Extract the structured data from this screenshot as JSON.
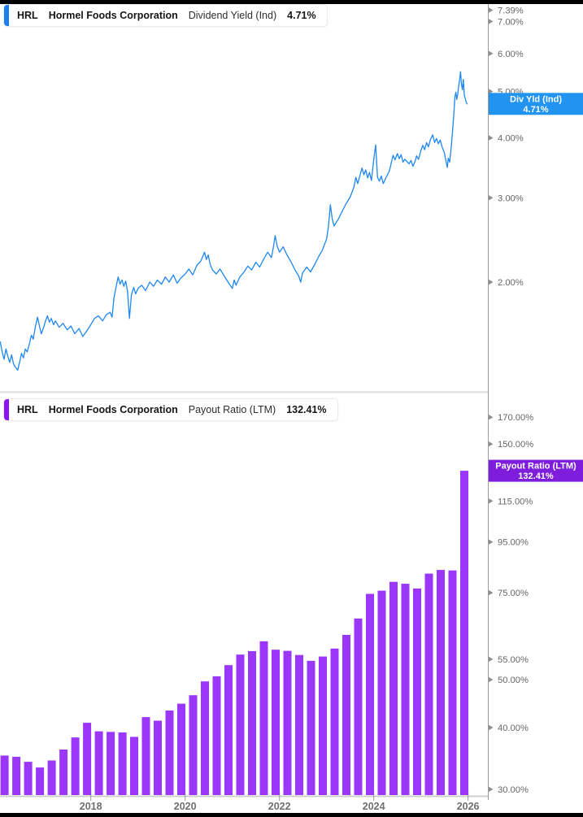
{
  "page": {
    "background": "#ffffff",
    "top_bar_color": "#000000",
    "bottom_bar_color": "#000000",
    "axis_color": "#9a9a9a",
    "tick_label_color": "#666666",
    "year_label_color": "#6f6f6f"
  },
  "chart_data": [
    {
      "type": "line",
      "title": "HRL Hormel Foods Corporation Dividend Yield (Ind) 4.71%",
      "header": {
        "ticker": "HRL",
        "company": "Hormel Foods Corporation",
        "metric": "Dividend Yield (Ind)",
        "value": "4.71%",
        "accent_color": "#1B7FF2"
      },
      "badge": {
        "line1": "Div Yld (Ind)",
        "line2": "4.71%",
        "color": "#2193F0",
        "value": 4.71
      },
      "line_color": "#1E87F0",
      "scale": "log",
      "grid": false,
      "legend": "none",
      "xlim": [
        2016.074,
        2026.42
      ],
      "ylim": [
        1.185,
        7.61
      ],
      "yticks": [
        {
          "v": 7.39,
          "label": "7.39%"
        },
        {
          "v": 7.0,
          "label": "7.00%"
        },
        {
          "v": 6.0,
          "label": "6.00%"
        },
        {
          "v": 5.0,
          "label": "5.00%"
        },
        {
          "v": 4.0,
          "label": "4.00%"
        },
        {
          "v": 3.0,
          "label": "3.00%"
        },
        {
          "v": 2.0,
          "label": "2.00%"
        }
      ],
      "points": [
        [
          2016.08,
          1.5
        ],
        [
          2016.12,
          1.43
        ],
        [
          2016.16,
          1.38
        ],
        [
          2016.2,
          1.45
        ],
        [
          2016.24,
          1.4
        ],
        [
          2016.28,
          1.36
        ],
        [
          2016.32,
          1.41
        ],
        [
          2016.36,
          1.35
        ],
        [
          2016.4,
          1.33
        ],
        [
          2016.45,
          1.31
        ],
        [
          2016.49,
          1.36
        ],
        [
          2016.53,
          1.42
        ],
        [
          2016.57,
          1.39
        ],
        [
          2016.61,
          1.45
        ],
        [
          2016.65,
          1.43
        ],
        [
          2016.7,
          1.49
        ],
        [
          2016.74,
          1.55
        ],
        [
          2016.78,
          1.52
        ],
        [
          2016.82,
          1.61
        ],
        [
          2016.87,
          1.69
        ],
        [
          2016.91,
          1.62
        ],
        [
          2016.95,
          1.56
        ],
        [
          2017.0,
          1.61
        ],
        [
          2017.04,
          1.66
        ],
        [
          2017.08,
          1.7
        ],
        [
          2017.12,
          1.65
        ],
        [
          2017.16,
          1.68
        ],
        [
          2017.21,
          1.63
        ],
        [
          2017.25,
          1.66
        ],
        [
          2017.33,
          1.61
        ],
        [
          2017.41,
          1.64
        ],
        [
          2017.5,
          1.59
        ],
        [
          2017.58,
          1.62
        ],
        [
          2017.66,
          1.56
        ],
        [
          2017.75,
          1.6
        ],
        [
          2017.83,
          1.54
        ],
        [
          2017.91,
          1.58
        ],
        [
          2018.0,
          1.63
        ],
        [
          2018.08,
          1.68
        ],
        [
          2018.16,
          1.7
        ],
        [
          2018.25,
          1.66
        ],
        [
          2018.33,
          1.71
        ],
        [
          2018.41,
          1.73
        ],
        [
          2018.45,
          1.69
        ],
        [
          2018.49,
          1.85
        ],
        [
          2018.53,
          1.94
        ],
        [
          2018.58,
          2.05
        ],
        [
          2018.62,
          1.98
        ],
        [
          2018.66,
          2.02
        ],
        [
          2018.7,
          1.96
        ],
        [
          2018.74,
          2.01
        ],
        [
          2018.78,
          1.91
        ],
        [
          2018.82,
          1.68
        ],
        [
          2018.86,
          1.88
        ],
        [
          2018.91,
          1.95
        ],
        [
          2018.95,
          1.89
        ],
        [
          2019.0,
          1.94
        ],
        [
          2019.08,
          1.97
        ],
        [
          2019.16,
          1.92
        ],
        [
          2019.25,
          2.0
        ],
        [
          2019.33,
          1.96
        ],
        [
          2019.41,
          2.02
        ],
        [
          2019.5,
          1.98
        ],
        [
          2019.58,
          2.05
        ],
        [
          2019.66,
          2.0
        ],
        [
          2019.75,
          2.07
        ],
        [
          2019.83,
          1.99
        ],
        [
          2019.91,
          2.04
        ],
        [
          2020.0,
          2.08
        ],
        [
          2020.08,
          2.13
        ],
        [
          2020.16,
          2.07
        ],
        [
          2020.25,
          2.17
        ],
        [
          2020.33,
          2.21
        ],
        [
          2020.41,
          2.31
        ],
        [
          2020.45,
          2.23
        ],
        [
          2020.49,
          2.28
        ],
        [
          2020.53,
          2.18
        ],
        [
          2020.58,
          2.12
        ],
        [
          2020.66,
          2.08
        ],
        [
          2020.74,
          2.13
        ],
        [
          2020.83,
          2.06
        ],
        [
          2020.91,
          2.0
        ],
        [
          2021.0,
          1.94
        ],
        [
          2021.04,
          2.02
        ],
        [
          2021.08,
          1.97
        ],
        [
          2021.16,
          2.05
        ],
        [
          2021.25,
          2.1
        ],
        [
          2021.33,
          2.16
        ],
        [
          2021.41,
          2.12
        ],
        [
          2021.5,
          2.2
        ],
        [
          2021.58,
          2.15
        ],
        [
          2021.66,
          2.23
        ],
        [
          2021.75,
          2.31
        ],
        [
          2021.83,
          2.25
        ],
        [
          2021.87,
          2.36
        ],
        [
          2021.91,
          2.5
        ],
        [
          2021.95,
          2.38
        ],
        [
          2022.0,
          2.31
        ],
        [
          2022.08,
          2.37
        ],
        [
          2022.16,
          2.28
        ],
        [
          2022.25,
          2.2
        ],
        [
          2022.33,
          2.12
        ],
        [
          2022.41,
          2.06
        ],
        [
          2022.45,
          2.0
        ],
        [
          2022.49,
          2.09
        ],
        [
          2022.58,
          2.15
        ],
        [
          2022.66,
          2.1
        ],
        [
          2022.75,
          2.18
        ],
        [
          2022.83,
          2.26
        ],
        [
          2022.91,
          2.33
        ],
        [
          2023.0,
          2.46
        ],
        [
          2023.04,
          2.62
        ],
        [
          2023.08,
          2.9
        ],
        [
          2023.12,
          2.71
        ],
        [
          2023.16,
          2.62
        ],
        [
          2023.25,
          2.71
        ],
        [
          2023.33,
          2.81
        ],
        [
          2023.41,
          2.91
        ],
        [
          2023.5,
          3.01
        ],
        [
          2023.58,
          3.16
        ],
        [
          2023.62,
          3.31
        ],
        [
          2023.66,
          3.21
        ],
        [
          2023.75,
          3.46
        ],
        [
          2023.79,
          3.35
        ],
        [
          2023.83,
          3.43
        ],
        [
          2023.87,
          3.3
        ],
        [
          2023.91,
          3.39
        ],
        [
          2023.95,
          3.26
        ],
        [
          2024.0,
          3.61
        ],
        [
          2024.04,
          3.87
        ],
        [
          2024.08,
          3.31
        ],
        [
          2024.12,
          3.25
        ],
        [
          2024.16,
          3.33
        ],
        [
          2024.2,
          3.21
        ],
        [
          2024.25,
          3.29
        ],
        [
          2024.33,
          3.41
        ],
        [
          2024.41,
          3.68
        ],
        [
          2024.45,
          3.6
        ],
        [
          2024.5,
          3.71
        ],
        [
          2024.54,
          3.62
        ],
        [
          2024.58,
          3.69
        ],
        [
          2024.62,
          3.56
        ],
        [
          2024.66,
          3.61
        ],
        [
          2024.75,
          3.53
        ],
        [
          2024.79,
          3.59
        ],
        [
          2024.83,
          3.49
        ],
        [
          2024.87,
          3.56
        ],
        [
          2024.91,
          3.67
        ],
        [
          2024.95,
          3.61
        ],
        [
          2025.0,
          3.76
        ],
        [
          2025.04,
          3.86
        ],
        [
          2025.08,
          3.78
        ],
        [
          2025.12,
          3.91
        ],
        [
          2025.16,
          3.83
        ],
        [
          2025.2,
          3.96
        ],
        [
          2025.25,
          4.06
        ],
        [
          2025.29,
          3.91
        ],
        [
          2025.33,
          3.99
        ],
        [
          2025.37,
          3.89
        ],
        [
          2025.41,
          3.96
        ],
        [
          2025.45,
          3.83
        ],
        [
          2025.5,
          3.72
        ],
        [
          2025.53,
          3.58
        ],
        [
          2025.56,
          3.47
        ],
        [
          2025.58,
          3.63
        ],
        [
          2025.61,
          3.56
        ],
        [
          2025.64,
          3.8
        ],
        [
          2025.67,
          4.12
        ],
        [
          2025.7,
          4.5
        ],
        [
          2025.72,
          4.86
        ],
        [
          2025.74,
          4.98
        ],
        [
          2025.76,
          4.81
        ],
        [
          2025.78,
          4.93
        ],
        [
          2025.8,
          5.12
        ],
        [
          2025.82,
          5.28
        ],
        [
          2025.84,
          5.5
        ],
        [
          2025.86,
          5.18
        ],
        [
          2025.88,
          5.04
        ],
        [
          2025.9,
          5.3
        ],
        [
          2025.92,
          4.92
        ],
        [
          2025.94,
          4.83
        ],
        [
          2025.96,
          4.75
        ],
        [
          2025.98,
          4.71
        ]
      ]
    },
    {
      "type": "bar",
      "title": "HRL Hormel Foods Corporation Payout Ratio (LTM) 132.41%",
      "header": {
        "ticker": "HRL",
        "company": "Hormel Foods Corporation",
        "metric": "Payout Ratio (LTM)",
        "value": "132.41%",
        "accent_color": "#8A12F5"
      },
      "badge": {
        "line1": "Payout Ratio (LTM)",
        "line2": "132.41%",
        "color": "#7E1EDC",
        "value": 132.41
      },
      "bar_color": "#9B37FA",
      "scale": "log",
      "grid": false,
      "legend": "none",
      "xlim": [
        2016.074,
        2026.42
      ],
      "ylim": [
        29.2,
        190.6
      ],
      "yticks": [
        {
          "v": 170,
          "label": "170.00%"
        },
        {
          "v": 150,
          "label": "150.00%"
        },
        {
          "v": 115,
          "label": "115.00%"
        },
        {
          "v": 95,
          "label": "95.00%"
        },
        {
          "v": 75,
          "label": "75.00%"
        },
        {
          "v": 55,
          "label": "55.00%"
        },
        {
          "v": 50,
          "label": "50.00%"
        },
        {
          "v": 40,
          "label": "40.00%"
        },
        {
          "v": 30,
          "label": "30.00%"
        }
      ],
      "xticks": [
        {
          "v": 2018,
          "label": "2018"
        },
        {
          "v": 2020,
          "label": "2020"
        },
        {
          "v": 2022,
          "label": "2022"
        },
        {
          "v": 2024,
          "label": "2024"
        },
        {
          "v": 2026,
          "label": "2026"
        }
      ],
      "quarters": [
        2016.17,
        2016.42,
        2016.67,
        2016.92,
        2017.17,
        2017.42,
        2017.67,
        2017.92,
        2018.17,
        2018.42,
        2018.67,
        2018.92,
        2019.17,
        2019.42,
        2019.67,
        2019.92,
        2020.17,
        2020.42,
        2020.67,
        2020.92,
        2021.17,
        2021.42,
        2021.67,
        2021.92,
        2022.17,
        2022.42,
        2022.67,
        2022.92,
        2023.17,
        2023.42,
        2023.67,
        2023.92,
        2024.17,
        2024.42,
        2024.67,
        2024.92,
        2025.17,
        2025.42,
        2025.67,
        2025.92
      ],
      "values": [
        35.1,
        34.9,
        34.1,
        33.2,
        34.3,
        36.1,
        38.2,
        40.9,
        39.3,
        39.2,
        39.1,
        38.3,
        42.0,
        41.3,
        43.3,
        44.7,
        46.5,
        49.6,
        50.8,
        53.5,
        56.2,
        57.1,
        59.8,
        57.5,
        57.2,
        56.1,
        54.6,
        55.7,
        57.8,
        61.6,
        66.5,
        74.6,
        75.7,
        78.9,
        78.2,
        76.5,
        82.0,
        83.4,
        83.2,
        132.41
      ]
    }
  ]
}
